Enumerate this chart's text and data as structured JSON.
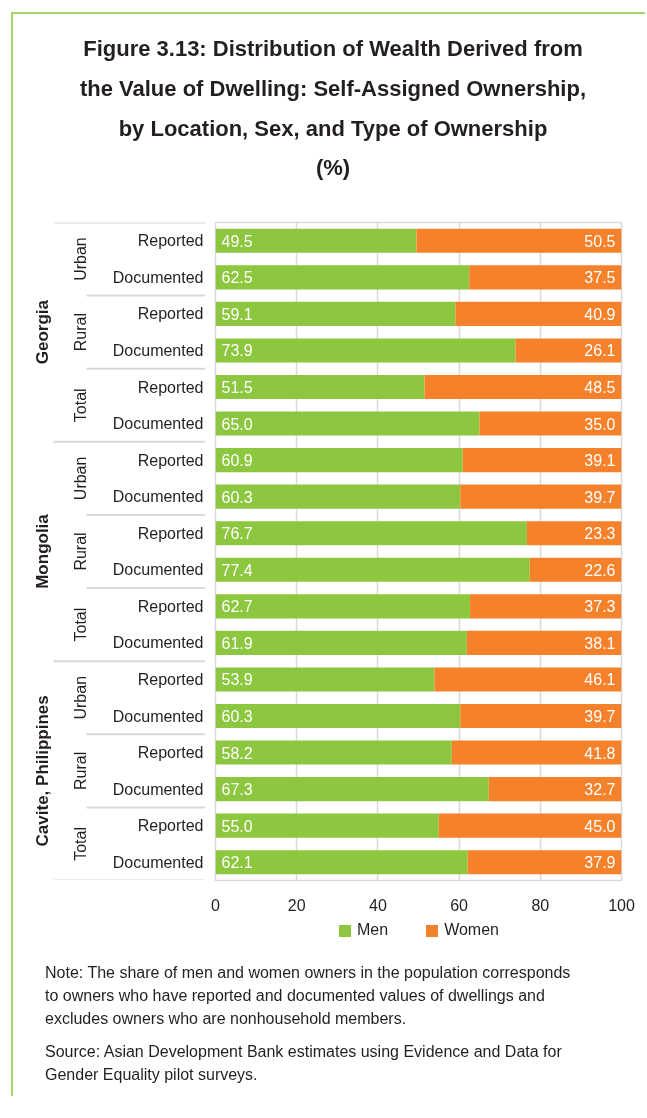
{
  "chart_data": {
    "type": "bar",
    "orientation": "horizontal",
    "stacked": true,
    "title": "Figure 3.13: Distribution of Wealth Derived from the Value of Dwelling: Self-Assigned Ownership, by Location, Sex, and Type of Ownership",
    "subtitle": "(%)",
    "categories": [
      "Reported",
      "Documented",
      "Reported",
      "Documented",
      "Reported",
      "Documented",
      "Reported",
      "Documented",
      "Reported",
      "Documented",
      "Reported",
      "Documented",
      "Reported",
      "Documented",
      "Reported",
      "Documented",
      "Reported",
      "Documented"
    ],
    "series": [
      {
        "name": "Men",
        "color": "#8dc63f",
        "values": [
          49.5,
          62.5,
          59.1,
          73.9,
          51.5,
          65.0,
          60.9,
          60.3,
          76.7,
          77.4,
          62.7,
          61.9,
          53.9,
          60.3,
          58.2,
          67.3,
          55.0,
          62.1
        ],
        "value_labels": [
          "49.5",
          "62.5",
          "59.1",
          "73.9",
          "51.5",
          "65.0",
          "60.9",
          "60.3",
          "76.7",
          "77.4",
          "62.7",
          "61.9",
          "53.9",
          "60.3",
          "58.2",
          "67.3",
          "55.0",
          "62.1"
        ]
      },
      {
        "name": "Women",
        "color": "#f5822a",
        "values": [
          50.5,
          37.5,
          40.9,
          26.1,
          48.5,
          35.0,
          39.1,
          39.7,
          23.3,
          22.6,
          37.3,
          38.1,
          46.1,
          39.7,
          41.8,
          32.7,
          45.0,
          37.9
        ],
        "value_labels": [
          "50.5",
          "37.5",
          "40.9",
          "26.1",
          "48.5",
          "35.0",
          "39.1",
          "39.7",
          "23.3",
          "22.6",
          "37.3",
          "38.1",
          "46.1",
          "39.7",
          "41.8",
          "32.7",
          "45.0",
          "37.9"
        ]
      }
    ],
    "xlim": [
      0,
      100
    ],
    "xticks": [
      0,
      20,
      40,
      60,
      80,
      100
    ],
    "grid": "x",
    "legend": "bottom",
    "annotations": [
      "Georgia",
      "Urban",
      "Rural",
      "Total",
      "Mongolia",
      "Urban",
      "Rural",
      "Total",
      "Cavite, Philippines",
      "Urban",
      "Rural",
      "Total",
      "Note: The share of men and women owners in the population corresponds to owners who have reported and documented values of dwellings and excludes owners who are nonhousehold members.",
      "Source: Asian Development Bank estimates using Evidence and Data for Gender Equality pilot surveys."
    ]
  }
}
